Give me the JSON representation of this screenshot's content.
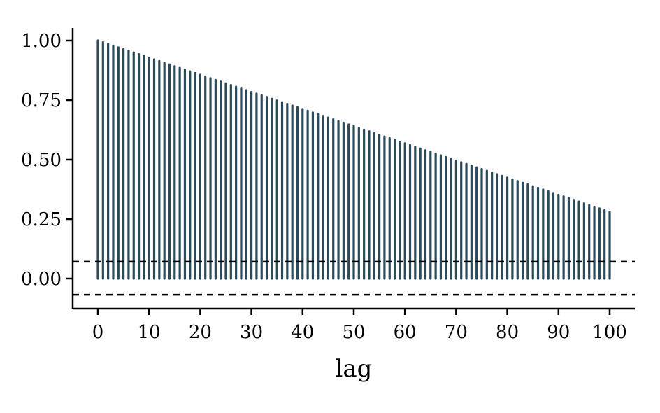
{
  "chart_data": {
    "type": "bar",
    "subtype": "acf-stem",
    "title": "",
    "xlabel": "lag",
    "ylabel": "",
    "xlim": [
      0,
      100
    ],
    "ylim": [
      -0.1,
      1.0
    ],
    "x_ticks": [
      "0",
      "10",
      "20",
      "30",
      "40",
      "50",
      "60",
      "70",
      "80",
      "90",
      "100"
    ],
    "y_ticks": [
      "0.00",
      "0.25",
      "0.50",
      "0.75",
      "1.00"
    ],
    "lags": [
      0,
      100
    ],
    "acf_start": 1.0,
    "acf_end": 0.28,
    "decay": "linear",
    "confidence_bounds": [
      0.071,
      -0.068
    ],
    "bar_color": "#2b4a5a",
    "bound_style": "dashed",
    "grid": false,
    "legend": "none"
  }
}
